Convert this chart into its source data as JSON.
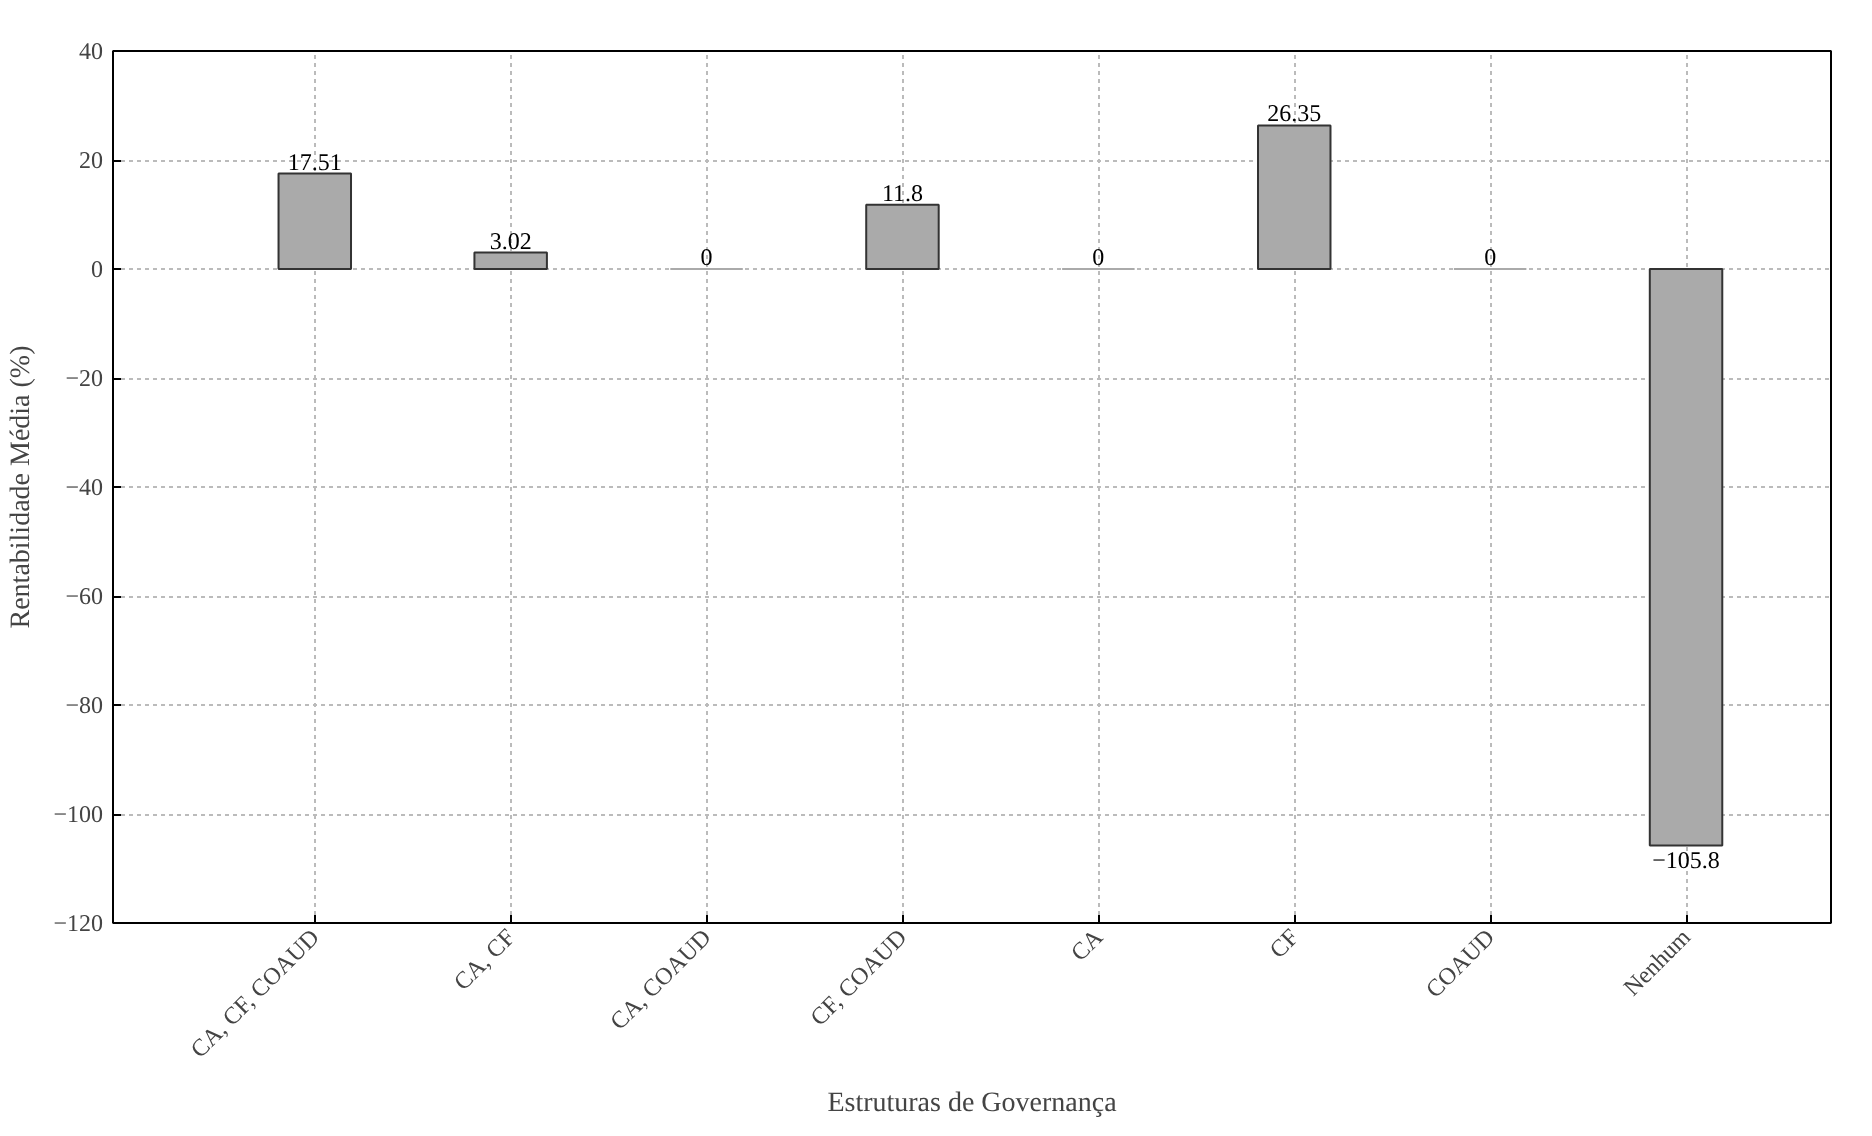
{
  "chart_data": {
    "type": "bar",
    "xlabel": "Estruturas de Governança",
    "ylabel": "Rentabilidade Média (%)",
    "categories": [
      "CA, CF, COAUD",
      "CA, CF",
      "CA, COAUD",
      "CF, COAUD",
      "CA",
      "CF",
      "COAUD",
      "Nenhum"
    ],
    "values": [
      17.51,
      3.02,
      0,
      11.8,
      0,
      26.35,
      0,
      -105.8
    ],
    "color": "#aaaaaa",
    "ylim": [
      -120,
      40
    ],
    "yticks": [
      -120,
      -100,
      -80,
      -60,
      -40,
      -20,
      0,
      20,
      40
    ],
    "grid": true,
    "data_labels": true
  }
}
